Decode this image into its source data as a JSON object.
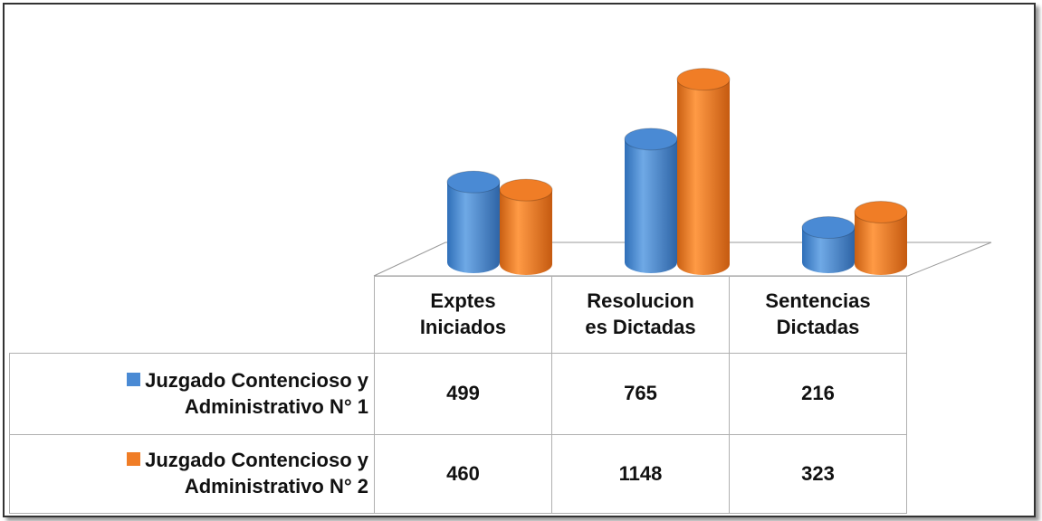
{
  "chart_data": {
    "type": "bar",
    "categories": [
      "Exptes Iniciados",
      "Resolucion es Dictadas",
      "Sentencias Dictadas"
    ],
    "series": [
      {
        "name": "Juzgado Contencioso y Administrativo N° 1",
        "color": "#4a8ad4",
        "values": [
          499,
          765,
          216
        ]
      },
      {
        "name": "Juzgado Contencioso y Administrativo N° 2",
        "color": "#f07d26",
        "values": [
          460,
          1148,
          323
        ]
      }
    ]
  }
}
